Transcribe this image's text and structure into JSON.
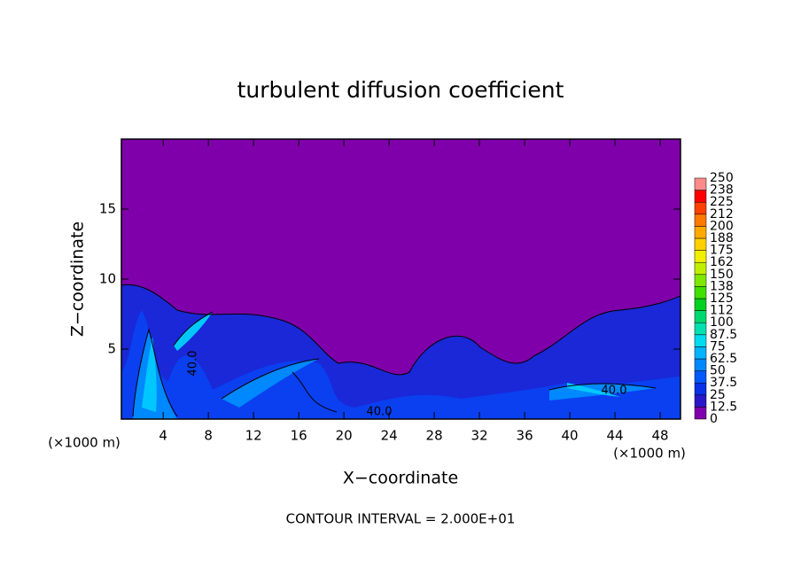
{
  "chart_data": {
    "type": "contour",
    "title": "turbulent diffusion coefficient",
    "xlabel": "X−coordinate",
    "ylabel": "Z−coordinate",
    "x_unit_label": "(×1000 m)",
    "x_unit_label_right": "(×1000 m)",
    "footer": "CONTOUR INTERVAL = 2.000E+01",
    "xlim": [
      0.3,
      49.8
    ],
    "xticks": [
      4,
      8,
      12,
      16,
      20,
      24,
      28,
      32,
      36,
      40,
      44,
      48
    ],
    "ylim": [
      0,
      20
    ],
    "yticks": [
      5,
      10,
      15
    ],
    "colorbar": {
      "levels": [
        0,
        12.5,
        25,
        37.5,
        50,
        62.5,
        75,
        87.5,
        100,
        112,
        125,
        138,
        150,
        162,
        175,
        188,
        200,
        212,
        225,
        238,
        250
      ],
      "colors": [
        "#7f00aa",
        "#2a18c8",
        "#0a30e8",
        "#0058ff",
        "#0088ff",
        "#00b4ff",
        "#00dcf0",
        "#00e0b0",
        "#00d870",
        "#00d020",
        "#40e000",
        "#80e800",
        "#c0f000",
        "#f0f000",
        "#ffd000",
        "#ffa800",
        "#ff7800",
        "#ff4000",
        "#ff0000",
        "#ff8a8a"
      ]
    },
    "contour_labels": [
      {
        "value": 40,
        "label": "40.0"
      },
      {
        "value": 40,
        "label": "40.0"
      },
      {
        "value": 40,
        "label": "40.0"
      }
    ]
  }
}
